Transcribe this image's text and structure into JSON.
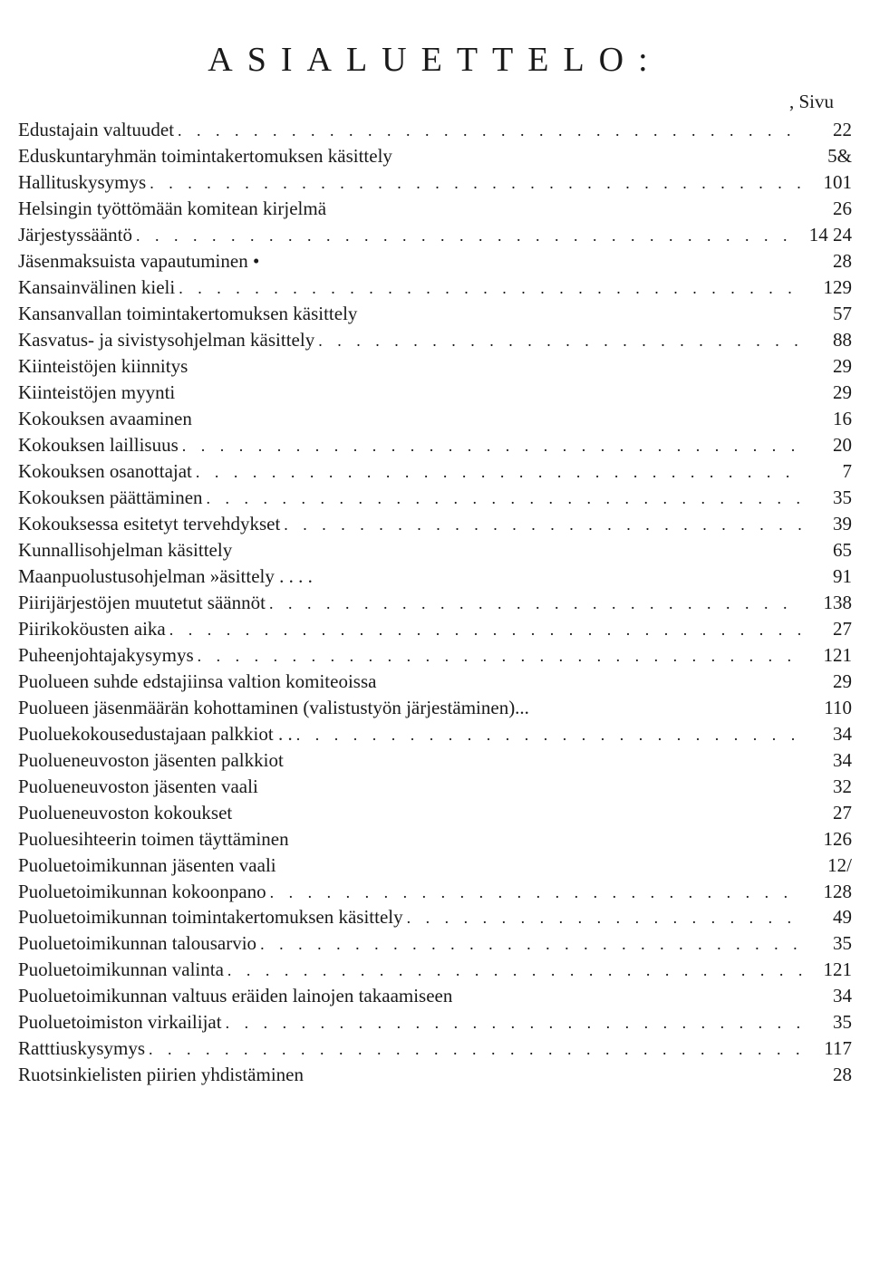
{
  "title": "ASIALUETTELO:",
  "sivu_label": ", Sivu",
  "entries": [
    {
      "label": "Edustajain valtuudet",
      "dots": " ,  ",
      "page": "22"
    },
    {
      "label": "Eduskuntaryhmän toimintakertomuksen käsittely",
      "dots": " ",
      "page": "5&"
    },
    {
      "label": "Hallituskysymys",
      "dots": "  • ",
      "page": "101"
    },
    {
      "label": "Helsingin työttömään komitean kirjelmä",
      "dots": " ",
      "page": "26"
    },
    {
      "label": "Järjestyssääntö",
      "dots": " •< • ,  ",
      "page": "14 24"
    },
    {
      "label": "Jäsenmaksuista vapautuminen •",
      "dots": " ",
      "page": "28"
    },
    {
      "label": "Kansainvälinen kieli",
      "dots": " • ",
      "page": "129"
    },
    {
      "label": "Kansanvallan toimintakertomuksen käsittely",
      "dots": " ",
      "page": "57"
    },
    {
      "label": "Kasvatus- ja sivistysohjelman käsittely",
      "dots": " ,  ",
      "page": "88"
    },
    {
      "label": "Kiinteistöjen kiinnitys",
      "dots": " ",
      "page": "29"
    },
    {
      "label": "Kiinteistöjen myynti",
      "dots": " ",
      "page": "29"
    },
    {
      "label": "Kokouksen avaaminen",
      "dots": " ",
      "page": "16"
    },
    {
      "label": "Kokouksen laillisuus",
      "dots": "  .  ",
      "page": "20"
    },
    {
      "label": "Kokouksen osanottajat",
      "dots": " ,. • •  ",
      "page": "7"
    },
    {
      "label": "Kokouksen päättäminen",
      "dots": " .. .  ",
      "page": "35"
    },
    {
      "label": "Kokouksessa esitetyt tervehdykset",
      "dots": " '. ",
      "page": "39"
    },
    {
      "label": "Kunnallisohjelman käsittely",
      "dots": " ",
      "page": "65"
    },
    {
      "label": "Maanpuolustusohjelman »äsittely . . . .",
      "dots": " ",
      "page": "91"
    },
    {
      "label": "Piirijärjestöjen muutetut säännöt",
      "dots": " 1 ",
      "page": "138"
    },
    {
      "label": "Piirikoköusten aika",
      "dots": " . .  ",
      "page": "27"
    },
    {
      "label": "Puheenjohtajakysymys",
      "dots": " • ",
      "page": "121"
    },
    {
      "label": "Puolueen suhde edstajiinsa valtion komiteoissa",
      "dots": " ",
      "page": "29"
    },
    {
      "label": "Puolueen jäsenmäärän kohottaminen (valistustyön järjestäminen)...",
      "dots": "",
      "page": "110"
    },
    {
      "label": "Puoluekokousedustajaan palkkiot . .",
      "dots": " : ",
      "page": "34"
    },
    {
      "label": "Puolueneuvoston jäsenten palkkiot",
      "dots": " ",
      "page": "34"
    },
    {
      "label": "Puolueneuvoston jäsenten vaali",
      "dots": " ",
      "page": "32"
    },
    {
      "label": "Puolueneuvoston kokoukset",
      "dots": " ",
      "page": "27"
    },
    {
      "label": "Puoluesihteerin toimen täyttäminen",
      "dots": " ",
      "page": "126"
    },
    {
      "label": "Puoluetoimikunnan jäsenten vaali",
      "dots": " ",
      "page": "12/"
    },
    {
      "label": "Puoluetoimikunnan kokoonpano",
      "dots": " .. ",
      "page": "128"
    },
    {
      "label": "Puoluetoimikunnan toimintakertomuksen käsittely",
      "dots": " '.  ",
      "page": "49"
    },
    {
      "label": "Puoluetoimikunnan talousarvio",
      "dots": " <...  ",
      "page": "35"
    },
    {
      "label": "Puoluetoimikunnan valinta",
      "dots": "  f  w ",
      "page": "121"
    },
    {
      "label": "Puoluetoimikunnan valtuus eräiden lainojen takaamiseen",
      "dots": " ",
      "page": "34"
    },
    {
      "label": "Puoluetoimiston virkailijat",
      "dots": " ' ",
      "page": "35"
    },
    {
      "label": "Ratttiuskysymys",
      "dots": " .'. . ,  ",
      "page": "117"
    },
    {
      "label": "Ruotsinkielisten piirien yhdistäminen",
      "dots": " ",
      "page": "28"
    }
  ]
}
